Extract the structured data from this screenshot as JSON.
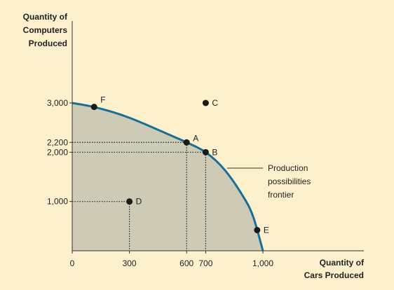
{
  "chart_data": {
    "type": "line",
    "title": "",
    "xlabel": [
      "Quantity of",
      "Cars Produced"
    ],
    "ylabel": [
      "Quantity of",
      "Computers",
      "Produced"
    ],
    "xlim": [
      0,
      1000
    ],
    "ylim": [
      0,
      3000
    ],
    "x_ticks": [
      {
        "value": 0,
        "label": "0"
      },
      {
        "value": 300,
        "label": "300"
      },
      {
        "value": 600,
        "label": "600"
      },
      {
        "value": 700,
        "label": "700"
      },
      {
        "value": 1000,
        "label": "1,000"
      }
    ],
    "y_ticks": [
      {
        "value": 1000,
        "label": "1,000"
      },
      {
        "value": 2000,
        "label": "2,000"
      },
      {
        "value": 2200,
        "label": "2,200"
      },
      {
        "value": 3000,
        "label": "3,000"
      }
    ],
    "series": [
      {
        "name": "",
        "curve": "production possibilities frontier",
        "x": [
          0,
          100,
          200,
          300,
          400,
          500,
          600,
          700,
          800,
          900,
          950,
          1000
        ],
        "y": [
          3000,
          2930,
          2830,
          2700,
          2540,
          2370,
          2200,
          2000,
          1640,
          1080,
          680,
          0
        ]
      }
    ],
    "points": [
      {
        "label": "F",
        "x": 115,
        "y": 2920
      },
      {
        "label": "C",
        "x": 700,
        "y": 3000
      },
      {
        "label": "A",
        "x": 600,
        "y": 2200
      },
      {
        "label": "B",
        "x": 700,
        "y": 2000
      },
      {
        "label": "D",
        "x": 300,
        "y": 1000
      },
      {
        "label": "E",
        "x": 970,
        "y": 420
      }
    ],
    "guides": [
      {
        "x": 600,
        "y": 2200
      },
      {
        "x": 700,
        "y": 2000
      },
      {
        "x": 300,
        "y": 1000
      }
    ],
    "annotation": [
      "Production",
      "possibilities",
      "frontier"
    ],
    "colors": {
      "background": "#fdf1cd",
      "fill": "#cdcab5",
      "curve": "#1a6e96",
      "point": "#1a1a1a",
      "axis": "#333333",
      "text": "#222222"
    }
  }
}
